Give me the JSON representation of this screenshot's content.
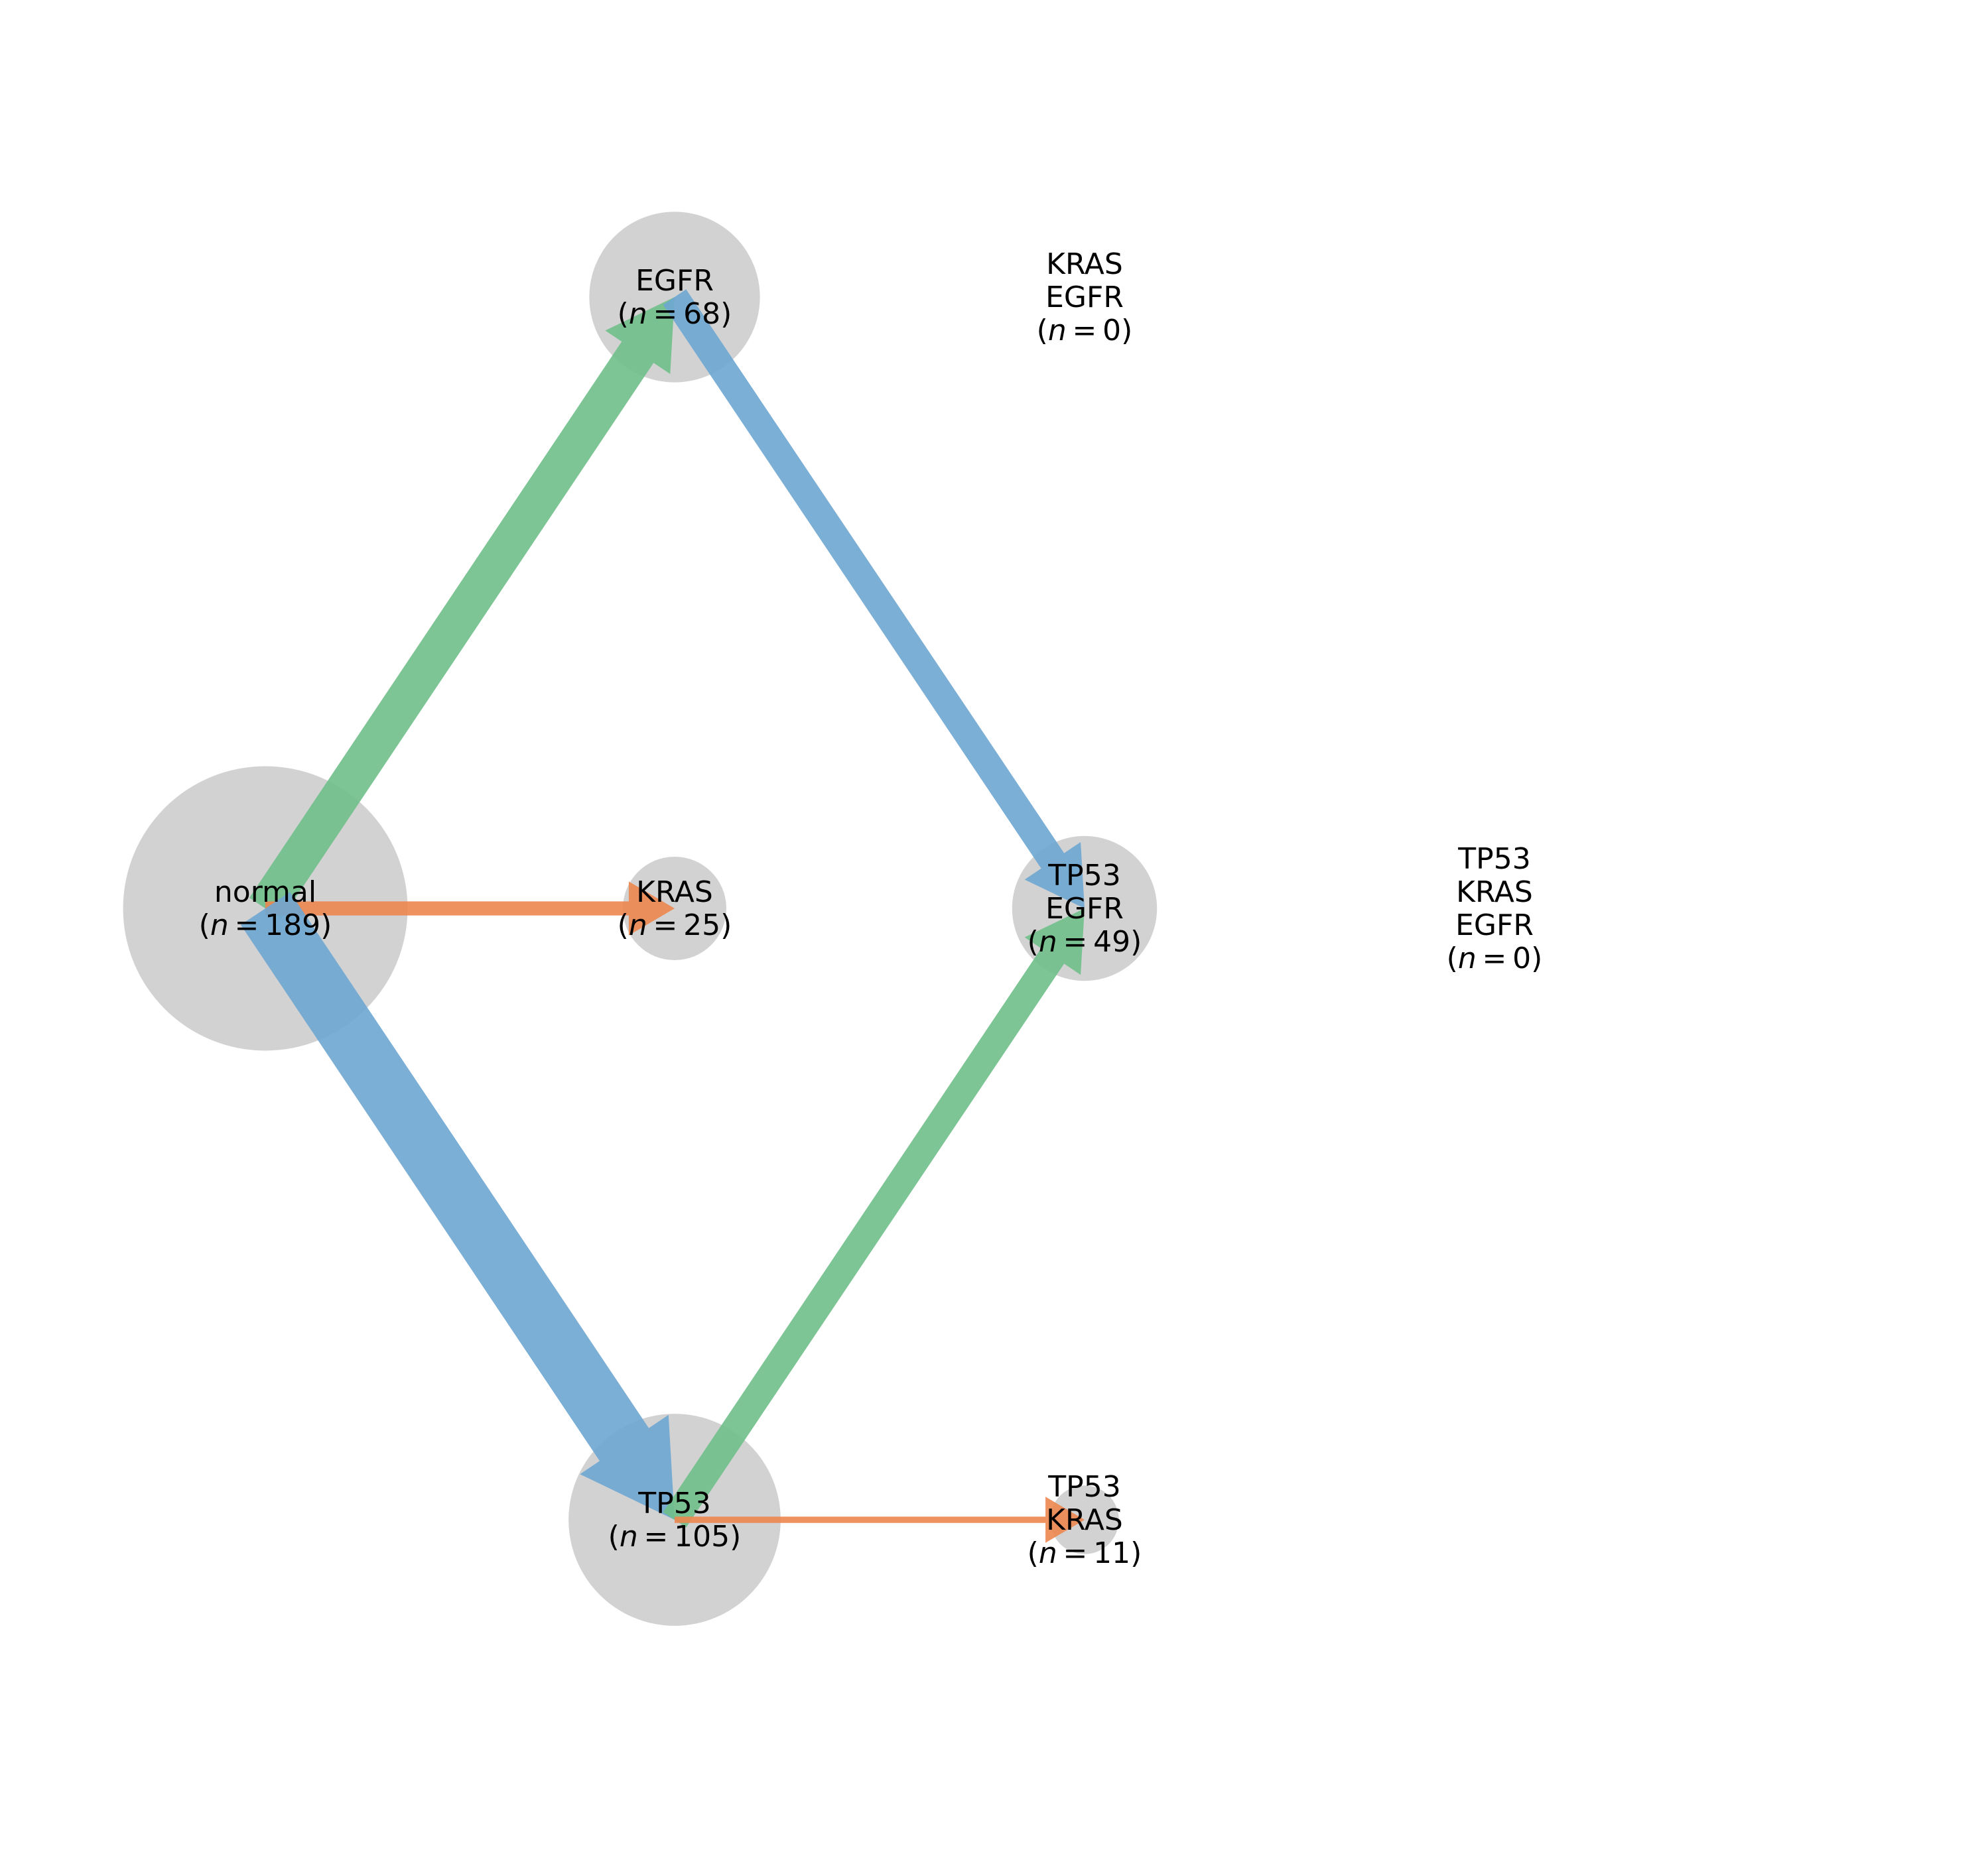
{
  "colors": {
    "node": "#d2d2d2",
    "TP53": "#6ea6d2",
    "KRAS": "#ec864f",
    "EGFR": "#6fbf88",
    "text": "#000000"
  },
  "nodes": [
    {
      "id": "normal",
      "lines": [
        "normal"
      ],
      "n": 189
    },
    {
      "id": "EGFR",
      "lines": [
        "EGFR"
      ],
      "n": 68
    },
    {
      "id": "KRAS",
      "lines": [
        "KRAS"
      ],
      "n": 25
    },
    {
      "id": "TP53",
      "lines": [
        "TP53"
      ],
      "n": 105
    },
    {
      "id": "KRAS_EGFR",
      "lines": [
        "KRAS",
        "EGFR"
      ],
      "n": 0
    },
    {
      "id": "TP53_EGFR",
      "lines": [
        "TP53",
        "EGFR"
      ],
      "n": 49
    },
    {
      "id": "TP53_KRAS",
      "lines": [
        "TP53",
        "KRAS"
      ],
      "n": 11
    },
    {
      "id": "TP53_KRAS_EGFR",
      "lines": [
        "TP53",
        "KRAS",
        "EGFR"
      ],
      "n": 0
    }
  ],
  "edges": [
    {
      "id": "normal-EGFR",
      "from": "normal",
      "to": "EGFR",
      "gene": "EGFR"
    },
    {
      "id": "normal-KRAS",
      "from": "normal",
      "to": "KRAS",
      "gene": "KRAS"
    },
    {
      "id": "normal-TP53",
      "from": "normal",
      "to": "TP53",
      "gene": "TP53"
    },
    {
      "id": "EGFR-TP53_EGFR",
      "from": "EGFR",
      "to": "TP53_EGFR",
      "gene": "TP53"
    },
    {
      "id": "TP53-TP53_EGFR",
      "from": "TP53",
      "to": "TP53_EGFR",
      "gene": "EGFR"
    },
    {
      "id": "TP53-TP53_KRAS",
      "from": "TP53",
      "to": "TP53_KRAS",
      "gene": "KRAS"
    }
  ]
}
